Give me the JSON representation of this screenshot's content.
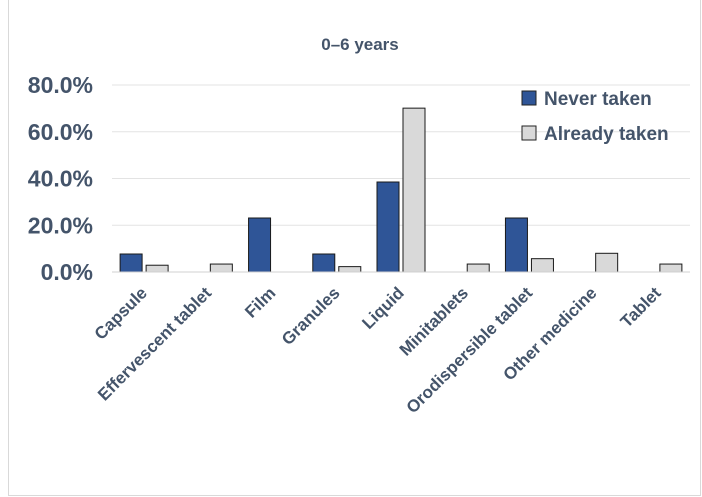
{
  "chart_data": {
    "type": "bar",
    "title": "0–6 years",
    "categories": [
      "Capsule",
      "Effervescent tablet",
      "Film",
      "Granules",
      "Liquid",
      "Minitablets",
      "Orodispersible tablet",
      "Other medicine",
      "Tablet"
    ],
    "series": [
      {
        "name": "Never taken",
        "color": "#2f5597",
        "values": [
          7.7,
          0.0,
          23.1,
          7.7,
          38.5,
          0.0,
          23.1,
          0.0,
          0.0
        ]
      },
      {
        "name": "Already taken",
        "color": "#d9d9d9",
        "values": [
          2.9,
          3.4,
          0.0,
          2.3,
          70.1,
          3.4,
          5.7,
          8.0,
          3.4
        ]
      }
    ],
    "yticks": [
      "0.0%",
      "20.0%",
      "40.0%",
      "60.0%",
      "80.0%"
    ],
    "ylim": [
      0,
      80
    ],
    "xlabel": "",
    "ylabel": "",
    "grid": true,
    "legend": "top-right"
  }
}
